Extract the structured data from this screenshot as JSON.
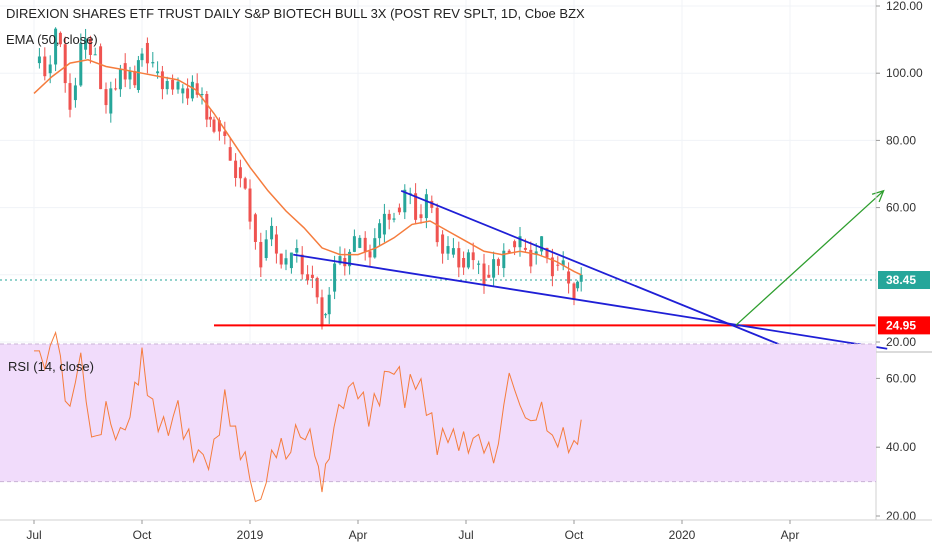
{
  "header": {
    "title": "DIREXION SHARES ETF TRUST DAILY S&P BIOTECH BULL 3X (POST REV SPLT, 1D, Cboe BZX",
    "indicator": "EMA (50, close)",
    "rsi_label": "RSI (14, close)"
  },
  "colors": {
    "candle_up": "#26a69a",
    "candle_down": "#ef5350",
    "ema": "#f57c3d",
    "trendline": "#1f1fd6",
    "support": "#ff0000",
    "projection": "#2e9e2e",
    "rsi_line": "#f57c3d",
    "rsi_band": "#f1dcfb",
    "last_price_badge": "#26a69a",
    "support_badge": "#ff0000"
  },
  "chart_data": [
    {
      "type": "candlestick",
      "title": "DIREXION SHARES ETF TRUST DAILY S&P BIOTECH BULL 3X (POST REV SPLT, 1D, Cboe BZX",
      "x_ticks": [
        "Jul",
        "Oct",
        "2019",
        "Apr",
        "Jul",
        "Oct",
        "2020",
        "Apr"
      ],
      "y_ticks": [
        "120.00",
        "100.00",
        "80.00",
        "60.00",
        "20.00"
      ],
      "ylim": [
        20,
        120
      ],
      "last_price": "38.45",
      "support_level": "24.95",
      "price_points": [
        [
          0,
          103
        ],
        [
          0.3,
          100
        ],
        [
          0.6,
          112
        ],
        [
          1.0,
          92
        ],
        [
          1.3,
          107
        ],
        [
          1.7,
          108
        ],
        [
          2.0,
          88
        ],
        [
          2.4,
          103
        ],
        [
          2.8,
          95
        ],
        [
          3.0,
          109
        ],
        [
          3.3,
          100
        ],
        [
          3.7,
          98
        ],
        [
          4.0,
          94
        ],
        [
          4.4,
          97
        ],
        [
          4.8,
          87
        ],
        [
          5.0,
          86
        ],
        [
          5.3,
          78
        ],
        [
          5.6,
          72
        ],
        [
          6.0,
          58
        ],
        [
          6.3,
          45
        ],
        [
          6.6,
          52
        ],
        [
          7.0,
          42
        ],
        [
          7.3,
          46
        ],
        [
          7.6,
          40
        ],
        [
          8.0,
          28
        ],
        [
          8.2,
          35
        ],
        [
          8.5,
          45
        ],
        [
          8.9,
          48
        ],
        [
          9.2,
          47
        ],
        [
          9.6,
          52
        ],
        [
          10.0,
          60
        ],
        [
          10.3,
          64
        ],
        [
          10.6,
          58
        ],
        [
          10.9,
          62
        ],
        [
          11.2,
          52
        ],
        [
          11.5,
          46
        ],
        [
          11.8,
          45
        ],
        [
          12.2,
          43
        ],
        [
          12.5,
          40
        ],
        [
          12.9,
          42
        ],
        [
          13.2,
          50
        ],
        [
          13.5,
          48
        ],
        [
          13.8,
          46
        ],
        [
          14.1,
          48
        ],
        [
          14.4,
          43
        ],
        [
          14.7,
          41
        ],
        [
          15.0,
          36
        ],
        [
          15.2,
          37
        ]
      ],
      "ema_points": [
        [
          0,
          94
        ],
        [
          0.5,
          99
        ],
        [
          1.0,
          103
        ],
        [
          1.5,
          104
        ],
        [
          2.0,
          102
        ],
        [
          2.5,
          101
        ],
        [
          3.0,
          100
        ],
        [
          3.5,
          99
        ],
        [
          4.0,
          98
        ],
        [
          4.5,
          95
        ],
        [
          5.0,
          88
        ],
        [
          5.5,
          80
        ],
        [
          6.0,
          72
        ],
        [
          6.5,
          65
        ],
        [
          7.0,
          59
        ],
        [
          7.5,
          54
        ],
        [
          8.0,
          48
        ],
        [
          8.5,
          46
        ],
        [
          9.0,
          46
        ],
        [
          9.5,
          48
        ],
        [
          10.0,
          51
        ],
        [
          10.5,
          55
        ],
        [
          11.0,
          56
        ],
        [
          11.5,
          53
        ],
        [
          12.0,
          50
        ],
        [
          12.5,
          47
        ],
        [
          13.0,
          46
        ],
        [
          13.5,
          47
        ],
        [
          14.0,
          46
        ],
        [
          14.5,
          44
        ],
        [
          15.0,
          41
        ],
        [
          15.2,
          40
        ]
      ],
      "annotations": {
        "upper_trendline": [
          [
            10.2,
            65
          ],
          [
            21.0,
            18
          ]
        ],
        "lower_trendline": [
          [
            7.2,
            46
          ],
          [
            23.7,
            18
          ]
        ],
        "support": [
          [
            5.0,
            24.95
          ],
          [
            24.5,
            24.95
          ]
        ],
        "projection_arrow": [
          [
            19.5,
            25
          ],
          [
            23.6,
            65
          ]
        ]
      }
    },
    {
      "type": "line",
      "title": "RSI (14, close)",
      "y_ticks": [
        "60.00",
        "40.00",
        "20.00"
      ],
      "ylim": [
        20,
        70
      ],
      "band": [
        30,
        70
      ],
      "series": [
        {
          "values": [
            [
              0,
              68
            ],
            [
              0.3,
              62
            ],
            [
              0.6,
              72
            ],
            [
              1.0,
              50
            ],
            [
              1.3,
              65
            ],
            [
              1.6,
              40
            ],
            [
              2.0,
              50
            ],
            [
              2.4,
              42
            ],
            [
              2.8,
              55
            ],
            [
              3.0,
              65
            ],
            [
              3.3,
              50
            ],
            [
              3.6,
              45
            ],
            [
              4.0,
              50
            ],
            [
              4.3,
              42
            ],
            [
              4.7,
              35
            ],
            [
              5.0,
              40
            ],
            [
              5.3,
              55
            ],
            [
              5.6,
              45
            ],
            [
              6.0,
              30
            ],
            [
              6.3,
              25
            ],
            [
              6.6,
              40
            ],
            [
              7.0,
              38
            ],
            [
              7.4,
              45
            ],
            [
              7.8,
              40
            ],
            [
              8.0,
              30
            ],
            [
              8.2,
              40
            ],
            [
              8.6,
              55
            ],
            [
              9.0,
              58
            ],
            [
              9.3,
              50
            ],
            [
              9.6,
              56
            ],
            [
              10.0,
              65
            ],
            [
              10.3,
              55
            ],
            [
              10.6,
              60
            ],
            [
              10.9,
              52
            ],
            [
              11.2,
              40
            ],
            [
              11.5,
              43
            ],
            [
              11.8,
              40
            ],
            [
              12.2,
              43
            ],
            [
              12.5,
              38
            ],
            [
              12.9,
              40
            ],
            [
              13.2,
              60
            ],
            [
              13.5,
              50
            ],
            [
              13.8,
              45
            ],
            [
              14.1,
              50
            ],
            [
              14.4,
              40
            ],
            [
              14.7,
              42
            ],
            [
              15.0,
              38
            ],
            [
              15.2,
              48
            ]
          ]
        }
      ]
    }
  ]
}
